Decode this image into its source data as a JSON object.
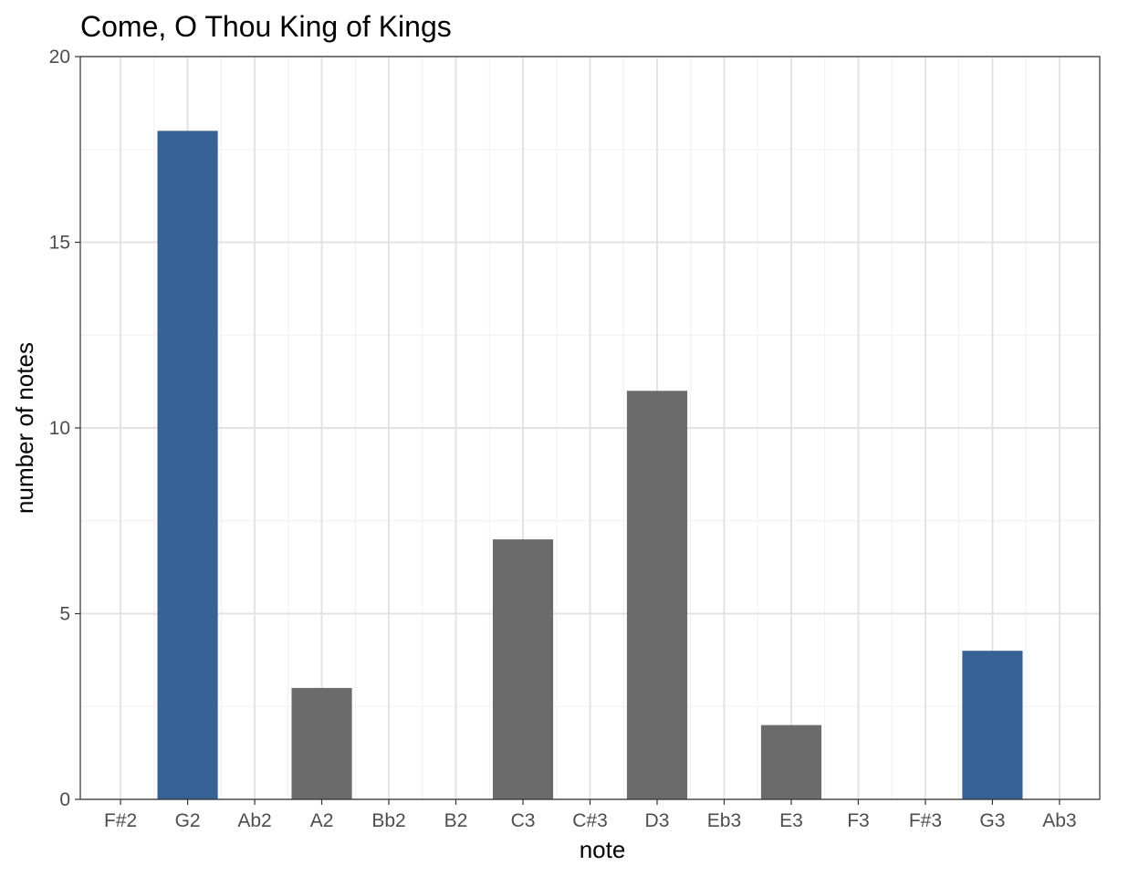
{
  "chart_data": {
    "type": "bar",
    "title": "Come, O Thou King of Kings",
    "xlabel": "note",
    "ylabel": "number of notes",
    "ylim": [
      0,
      20
    ],
    "y_ticks": [
      "0",
      "5",
      "10",
      "15",
      "20"
    ],
    "y_tick_values": [
      0,
      5,
      10,
      15,
      20
    ],
    "categories": [
      "F#2",
      "G2",
      "Ab2",
      "A2",
      "Bb2",
      "B2",
      "C3",
      "C#3",
      "D3",
      "Eb3",
      "E3",
      "F3",
      "F#3",
      "G3",
      "Ab3"
    ],
    "x_range": [
      1,
      15
    ],
    "bars": [
      {
        "x": 2,
        "label": "G2",
        "value": 18,
        "color": "#376296"
      },
      {
        "x": 4,
        "label": "A2",
        "value": 3,
        "color": "#6b6b6b"
      },
      {
        "x": 7,
        "label": "C3",
        "value": 7,
        "color": "#6b6b6b"
      },
      {
        "x": 9,
        "label": "D3",
        "value": 11,
        "color": "#6b6b6b"
      },
      {
        "x": 11,
        "label": "E3",
        "value": 2,
        "color": "#6b6b6b"
      },
      {
        "x": 14,
        "label": "G3",
        "value": 4,
        "color": "#376296"
      }
    ],
    "grid": true,
    "colors": {
      "highlight": "#376296",
      "default": "#6b6b6b"
    }
  }
}
